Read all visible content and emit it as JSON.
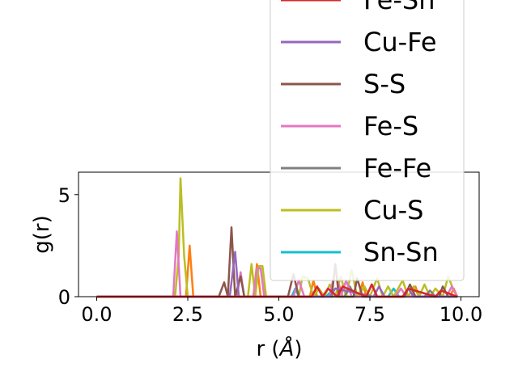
{
  "chart_data": {
    "type": "line",
    "xlabel_main": "r (",
    "xlabel_unit": "Å",
    "xlabel_close": ")",
    "ylabel": "g(r)",
    "xlim": [
      -0.5,
      10.5
    ],
    "ylim": [
      0,
      6.1
    ],
    "xticks": [
      0.0,
      2.5,
      5.0,
      7.5,
      10.0
    ],
    "xtick_labels": [
      "0.0",
      "2.5",
      "5.0",
      "7.5",
      "10.0"
    ],
    "yticks": [
      0,
      5
    ],
    "ytick_labels": [
      "0",
      "5"
    ],
    "legend_placement": "upper-right",
    "series": [
      {
        "name": "Fe-Sn",
        "color": "#d62728",
        "x": [
          0,
          5.9,
          6.05,
          6.2,
          6.35,
          6.6,
          6.75,
          7.4,
          7.55,
          7.7,
          8.4,
          8.55,
          9.3,
          9.45,
          9.9
        ],
        "y": [
          0,
          0,
          0.5,
          0,
          0.4,
          0,
          0.5,
          0,
          0.6,
          0,
          0,
          0.4,
          0,
          0.3,
          0
        ]
      },
      {
        "name": "Cu-Fe",
        "color": "#9467bd",
        "x": [
          0,
          3.65,
          3.72,
          3.8,
          3.9,
          6.4,
          6.55,
          7.6,
          7.75,
          7.9,
          8.4,
          8.55,
          8.7,
          9.9
        ],
        "y": [
          0,
          0,
          1.0,
          2.2,
          0,
          0,
          0.4,
          0,
          0.5,
          0,
          0,
          0.4,
          0,
          0
        ]
      },
      {
        "name": "S-S",
        "color": "#8c564b",
        "x": [
          0,
          3.35,
          3.5,
          3.6,
          3.7,
          3.8,
          3.95,
          4.05,
          4.2,
          5.25,
          5.4,
          5.55,
          6.45,
          6.55,
          6.65,
          7.05,
          7.15,
          7.3,
          7.45,
          8.45,
          8.6,
          8.75,
          9.4,
          9.5,
          9.65,
          9.9
        ],
        "y": [
          0,
          0,
          0.7,
          0,
          3.4,
          0,
          1.0,
          0,
          0,
          0,
          1.1,
          0,
          0,
          1.6,
          0,
          0,
          0.9,
          0,
          0,
          0,
          0.6,
          0,
          0,
          0.5,
          0,
          0
        ]
      },
      {
        "name": "Fe-S",
        "color": "#e377c2",
        "x": [
          0,
          2.1,
          2.2,
          2.3,
          3.85,
          3.95,
          4.05,
          4.15,
          4.3,
          4.4,
          4.5,
          4.6,
          5.4,
          5.55,
          5.7,
          6.4,
          6.55,
          6.7,
          6.85,
          7.0,
          7.4,
          7.55,
          7.7,
          8.2,
          8.35,
          8.5,
          9.6,
          9.75,
          9.9
        ],
        "y": [
          0,
          0,
          3.2,
          0,
          0,
          1.2,
          0,
          0,
          0,
          1.4,
          1.4,
          0,
          0,
          0.8,
          0,
          0,
          1.4,
          0,
          0.8,
          0,
          0,
          0.6,
          0,
          0,
          0.4,
          0,
          0,
          0.5,
          0
        ]
      },
      {
        "name": "Fe-Fe",
        "color": "#7f7f7f",
        "x": [
          0,
          6.8,
          6.95,
          7.1,
          9.0,
          9.15,
          9.3,
          9.9
        ],
        "y": [
          0,
          0,
          0.5,
          0,
          0,
          0.3,
          0,
          0
        ]
      },
      {
        "name": "Cu-S",
        "color": "#bcbd22",
        "x": [
          0,
          2.15,
          2.25,
          2.3,
          2.4,
          2.5,
          4.15,
          4.25,
          4.35,
          4.45,
          4.55,
          4.65,
          5.55,
          5.65,
          5.8,
          5.95,
          6.1,
          6.25,
          6.4,
          6.55,
          6.7,
          6.85,
          7.0,
          7.15,
          7.35,
          7.5,
          7.7,
          7.85,
          8.0,
          8.15,
          8.4,
          8.55,
          8.7,
          8.85,
          9.0,
          9.15,
          9.3,
          9.5,
          9.65,
          9.8,
          9.9
        ],
        "y": [
          0,
          0,
          2.0,
          5.8,
          2.0,
          0,
          0,
          1.6,
          0,
          1.5,
          1.5,
          0,
          0,
          1.0,
          0.9,
          0,
          0.4,
          0,
          0.6,
          0,
          1.0,
          0,
          1.3,
          0,
          0.5,
          0,
          0.9,
          0,
          0.5,
          0,
          0.8,
          0,
          0.5,
          0,
          0.6,
          0,
          0.4,
          0,
          1.0,
          0.3,
          0
        ]
      },
      {
        "name": "Sn-Sn",
        "color": "#17becf",
        "x": [
          0,
          5.35,
          5.45,
          5.55,
          6.3,
          6.45,
          6.6,
          8.0,
          8.15,
          8.3,
          9.9
        ],
        "y": [
          0,
          0,
          0.4,
          0,
          0,
          0.3,
          0,
          0,
          0.4,
          0,
          0
        ]
      },
      {
        "name": "",
        "color": "#ff7f0e",
        "x": [
          0,
          2.45,
          2.55,
          2.65,
          4.3,
          4.4,
          4.5,
          5.85,
          5.95,
          6.05,
          6.55,
          6.65,
          6.75,
          7.2,
          7.3,
          7.4,
          8.65,
          8.75,
          8.85,
          9.7,
          9.8,
          9.9
        ],
        "y": [
          0,
          0,
          2.5,
          0,
          0,
          1.6,
          0,
          0,
          0.8,
          0,
          0,
          0.6,
          0,
          0,
          0.7,
          0,
          0,
          0.5,
          0,
          0,
          0.4,
          0
        ]
      }
    ]
  }
}
